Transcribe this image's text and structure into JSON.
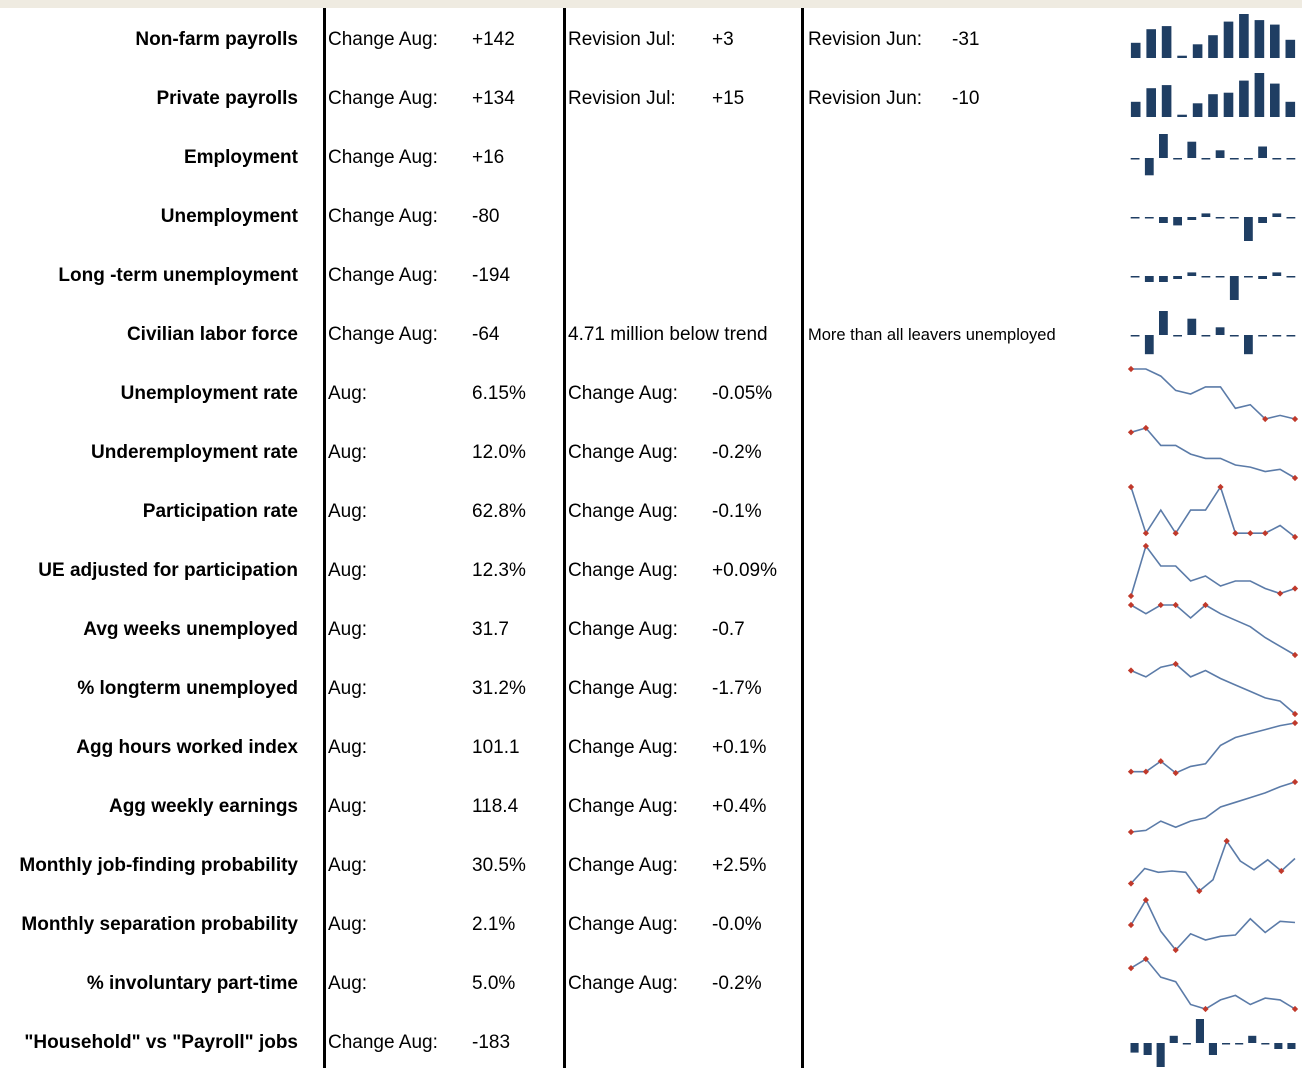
{
  "colors": {
    "bar": "#1f3e63",
    "line": "#5b7ba8",
    "marker": "#c0392b",
    "topbar": "#efebe1"
  },
  "rows": [
    {
      "label": "Non-farm payrolls",
      "c1": "Change Aug:",
      "v1": "+142",
      "c2": "Revision Jul:",
      "v2": "+3",
      "c3": "Revision Jun:",
      "v3": "-31",
      "spark": {
        "type": "bar",
        "values": [
          20,
          38,
          42,
          3,
          18,
          30,
          48,
          58,
          50,
          44,
          24
        ]
      }
    },
    {
      "label": "Private payrolls",
      "c1": "Change Aug:",
      "v1": "+134",
      "c2": "Revision Jul:",
      "v2": "+15",
      "c3": "Revision Jun:",
      "v3": "-10",
      "spark": {
        "type": "bar",
        "values": [
          20,
          38,
          42,
          3,
          18,
          30,
          32,
          48,
          58,
          44,
          20
        ]
      }
    },
    {
      "label": "Employment",
      "c1": "Change Aug:",
      "v1": "+16",
      "c2": "",
      "v2": "",
      "c3": "",
      "v3": "",
      "spark": {
        "type": "bar",
        "values": [
          -1,
          -18,
          25,
          -1,
          17,
          -1,
          8,
          -1,
          -1,
          12,
          -1,
          -1
        ]
      }
    },
    {
      "label": "Unemployment",
      "c1": "Change Aug:",
      "v1": "-80",
      "c2": "",
      "v2": "",
      "c3": "",
      "v3": "",
      "spark": {
        "type": "bar",
        "values": [
          -1,
          -1,
          -10,
          -14,
          -5,
          6,
          -1,
          -1,
          -40,
          -10,
          6,
          -1
        ]
      }
    },
    {
      "label": "Long -term unemployment",
      "c1": "Change Aug:",
      "v1": "-194",
      "c2": "",
      "v2": "",
      "c3": "",
      "v3": "",
      "spark": {
        "type": "bar",
        "values": [
          -1,
          -10,
          -10,
          -5,
          6,
          -1,
          -1,
          -40,
          -1,
          -5,
          6,
          -1
        ]
      }
    },
    {
      "label": "Civilian labor force",
      "c1": "Change Aug:",
      "v1": "-64",
      "c2": "4.71 million below trend",
      "v2": "",
      "c3": "More than all leavers unemployed",
      "v3": "",
      "spark": {
        "type": "bar",
        "values": [
          -1,
          -20,
          25,
          -1,
          17,
          -1,
          8,
          -1,
          -20,
          -1,
          -1,
          -1
        ]
      }
    },
    {
      "label": "Unemployment rate",
      "c1": "Aug:",
      "v1": "6.15%",
      "c2": "Change Aug:",
      "v2": "-0.05%",
      "c3": "",
      "v3": "",
      "spark": {
        "type": "line",
        "values": [
          7.3,
          7.3,
          7.2,
          7.0,
          6.95,
          7.05,
          7.05,
          6.75,
          6.8,
          6.6,
          6.65,
          6.6
        ],
        "markers": [
          0,
          9,
          11
        ]
      }
    },
    {
      "label": "Underemployment rate",
      "c1": "Aug:",
      "v1": "12.0%",
      "c2": "Change Aug:",
      "v2": "-0.2%",
      "c3": "",
      "v3": "",
      "spark": {
        "type": "line",
        "values": [
          14.2,
          14.3,
          13.9,
          13.9,
          13.7,
          13.6,
          13.6,
          13.45,
          13.4,
          13.3,
          13.35,
          13.15
        ],
        "markers": [
          0,
          1,
          11
        ]
      }
    },
    {
      "label": "Participation rate",
      "c1": "Aug:",
      "v1": "62.8%",
      "c2": "Change Aug:",
      "v2": "-0.1%",
      "c3": "",
      "v3": "",
      "spark": {
        "type": "line",
        "values": [
          63.6,
          63.0,
          63.3,
          63.0,
          63.3,
          63.3,
          63.6,
          63.0,
          63.0,
          63.0,
          63.1,
          62.95
        ],
        "markers": [
          0,
          1,
          3,
          6,
          7,
          8,
          9,
          11
        ]
      }
    },
    {
      "label": "UE adjusted for participation",
      "c1": "Aug:",
      "v1": "12.3%",
      "c2": "Change Aug:",
      "v2": "+0.09%",
      "c3": "",
      "v3": "",
      "spark": {
        "type": "line",
        "values": [
          12.4,
          13.4,
          13.0,
          13.0,
          12.7,
          12.8,
          12.6,
          12.7,
          12.7,
          12.55,
          12.45,
          12.55
        ],
        "markers": [
          0,
          1,
          10,
          11
        ]
      }
    },
    {
      "label": "Avg weeks unemployed",
      "c1": "Aug:",
      "v1": "31.7",
      "c2": "Change Aug:",
      "v2": "-0.7",
      "c3": "",
      "v3": "",
      "spark": {
        "type": "line",
        "values": [
          37.0,
          36.6,
          37.0,
          37.0,
          36.4,
          37.0,
          36.6,
          36.3,
          36.0,
          35.5,
          35.1,
          34.7
        ],
        "markers": [
          0,
          2,
          3,
          5,
          11
        ]
      }
    },
    {
      "label": "% longterm unemployed",
      "c1": "Aug:",
      "v1": "31.2%",
      "c2": "Change Aug:",
      "v2": "-1.7%",
      "c3": "",
      "v3": "",
      "spark": {
        "type": "line",
        "values": [
          38.5,
          38.1,
          38.7,
          38.9,
          38.1,
          38.5,
          38.0,
          37.6,
          37.2,
          36.8,
          36.6,
          35.8
        ],
        "markers": [
          0,
          3,
          11
        ]
      }
    },
    {
      "label": "Agg hours worked index",
      "c1": "Aug:",
      "v1": "101.1",
      "c2": "Change Aug:",
      "v2": "+0.1%",
      "c3": "",
      "v3": "",
      "spark": {
        "type": "line",
        "values": [
          99.0,
          99.0,
          99.4,
          98.95,
          99.2,
          99.3,
          100.0,
          100.3,
          100.45,
          100.6,
          100.75,
          100.85
        ],
        "markers": [
          0,
          1,
          2,
          3,
          11
        ]
      }
    },
    {
      "label": "Agg weekly earnings",
      "c1": "Aug:",
      "v1": "118.4",
      "c2": "Change Aug:",
      "v2": "+0.4%",
      "c3": "",
      "v3": "",
      "spark": {
        "type": "line",
        "values": [
          114.9,
          115.0,
          115.6,
          115.2,
          115.6,
          115.8,
          116.5,
          116.8,
          117.1,
          117.4,
          117.8,
          118.1
        ],
        "markers": [
          0,
          11
        ]
      }
    },
    {
      "label": "Monthly job-finding probability",
      "c1": "Aug:",
      "v1": "30.5%",
      "c2": "Change Aug:",
      "v2": "+2.5%",
      "c3": "",
      "v3": "",
      "spark": {
        "type": "line",
        "values": [
          27.0,
          28.2,
          27.9,
          28.0,
          27.9,
          26.4,
          27.3,
          30.4,
          28.8,
          28.1,
          28.9,
          28.0,
          29.0
        ],
        "markers": [
          0,
          5,
          7,
          11
        ]
      }
    },
    {
      "label": "Monthly separation probability",
      "c1": "Aug:",
      "v1": "2.1%",
      "c2": "Change Aug:",
      "v2": "-0.0%",
      "c3": "",
      "v3": "",
      "spark": {
        "type": "line",
        "values": [
          2.15,
          2.35,
          2.1,
          1.95,
          2.08,
          2.03,
          2.06,
          2.07,
          2.2,
          2.09,
          2.18,
          2.17
        ],
        "markers": [
          0,
          1,
          3
        ]
      }
    },
    {
      "label": "% involuntary part-time",
      "c1": "Aug:",
      "v1": "5.0%",
      "c2": "Change Aug:",
      "v2": "-0.2%",
      "c3": "",
      "v3": "",
      "spark": {
        "type": "line",
        "values": [
          5.75,
          5.85,
          5.65,
          5.6,
          5.35,
          5.3,
          5.4,
          5.45,
          5.35,
          5.42,
          5.4,
          5.3
        ],
        "markers": [
          0,
          1,
          5,
          11
        ]
      }
    },
    {
      "label": "\"Household\" vs \"Payroll\" jobs",
      "c1": "Change Aug:",
      "v1": "-183",
      "c2": "",
      "v2": "",
      "c3": "",
      "v3": "",
      "spark": {
        "type": "bar",
        "values": [
          -8,
          -10,
          -20,
          6,
          -1,
          20,
          -10,
          -1,
          -1,
          6,
          -1,
          -5,
          -5
        ]
      }
    }
  ]
}
